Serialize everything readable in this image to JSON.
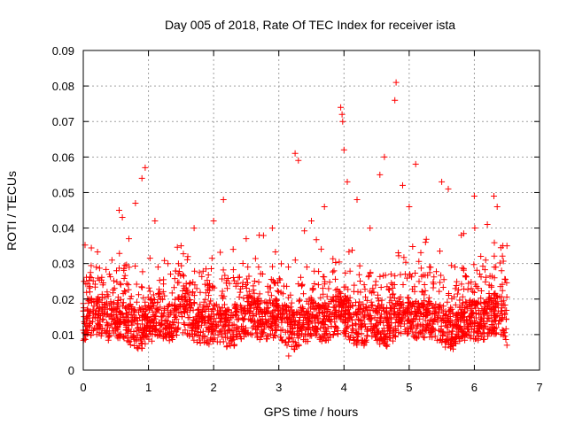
{
  "chart_data": {
    "type": "scatter",
    "title": "Day 005 of 2018, Rate Of TEC Index for receiver ista",
    "xlabel": "GPS time / hours",
    "ylabel": "ROTI / TECUs",
    "xlim": [
      0,
      7
    ],
    "ylim": [
      0,
      0.09
    ],
    "x_ticks": [
      "0",
      "1",
      "2",
      "3",
      "4",
      "5",
      "6",
      "7"
    ],
    "y_ticks": [
      "0",
      "0.01",
      "0.02",
      "0.03",
      "0.04",
      "0.05",
      "0.06",
      "0.07",
      "0.08",
      "0.09"
    ],
    "grid": true,
    "marker": "+",
    "color": "#ff0000",
    "series": [
      {
        "name": "ROTI",
        "notes": "dense band ~0.008-0.025 TECU over 0-6.5 h; representative points listed",
        "points": [
          [
            0.05,
            0.015
          ],
          [
            0.1,
            0.022
          ],
          [
            0.2,
            0.029
          ],
          [
            0.3,
            0.024
          ],
          [
            0.4,
            0.027
          ],
          [
            0.55,
            0.045
          ],
          [
            0.6,
            0.043
          ],
          [
            0.7,
            0.037
          ],
          [
            0.8,
            0.047
          ],
          [
            0.9,
            0.054
          ],
          [
            0.95,
            0.057
          ],
          [
            1.1,
            0.042
          ],
          [
            1.3,
            0.03
          ],
          [
            1.5,
            0.035
          ],
          [
            1.7,
            0.04
          ],
          [
            2.0,
            0.042
          ],
          [
            2.15,
            0.048
          ],
          [
            2.3,
            0.034
          ],
          [
            2.5,
            0.037
          ],
          [
            2.7,
            0.038
          ],
          [
            2.9,
            0.04
          ],
          [
            3.15,
            0.004
          ],
          [
            3.25,
            0.061
          ],
          [
            3.3,
            0.059
          ],
          [
            3.5,
            0.042
          ],
          [
            3.7,
            0.046
          ],
          [
            3.95,
            0.074
          ],
          [
            3.97,
            0.072
          ],
          [
            3.98,
            0.07
          ],
          [
            4.0,
            0.062
          ],
          [
            4.05,
            0.053
          ],
          [
            4.2,
            0.048
          ],
          [
            4.4,
            0.04
          ],
          [
            4.55,
            0.055
          ],
          [
            4.62,
            0.06
          ],
          [
            4.8,
            0.081
          ],
          [
            4.78,
            0.076
          ],
          [
            4.9,
            0.052
          ],
          [
            5.0,
            0.046
          ],
          [
            5.1,
            0.058
          ],
          [
            5.25,
            0.036
          ],
          [
            5.5,
            0.053
          ],
          [
            5.6,
            0.051
          ],
          [
            5.8,
            0.038
          ],
          [
            6.0,
            0.049
          ],
          [
            6.2,
            0.041
          ],
          [
            6.3,
            0.049
          ],
          [
            6.35,
            0.046
          ],
          [
            6.5,
            0.035
          ],
          [
            6.5,
            0.007
          ]
        ]
      }
    ]
  }
}
